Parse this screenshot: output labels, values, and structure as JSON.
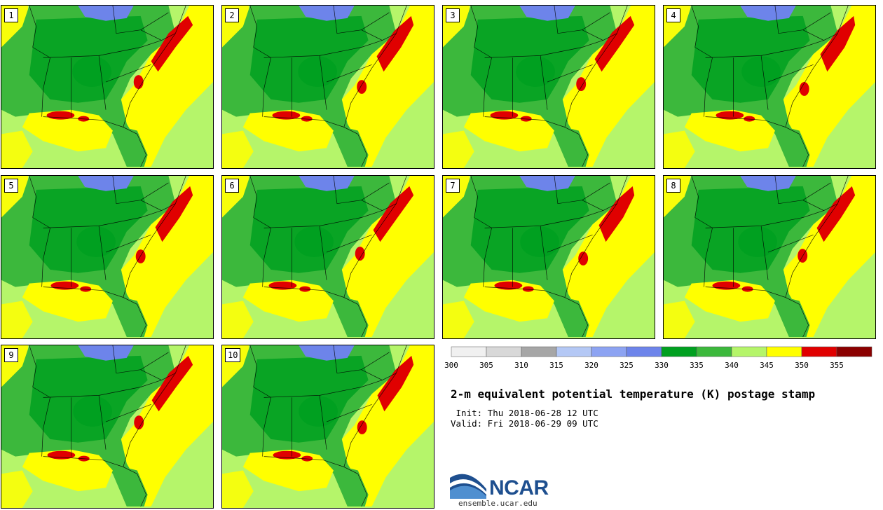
{
  "stamps": [
    {
      "label": "1",
      "red_ne": true
    },
    {
      "label": "2",
      "red_ne": true
    },
    {
      "label": "3",
      "red_ne": true
    },
    {
      "label": "4",
      "red_ne": true
    },
    {
      "label": "5",
      "red_ne": true
    },
    {
      "label": "6",
      "red_ne": true
    },
    {
      "label": "7",
      "red_ne": true
    },
    {
      "label": "8",
      "red_ne": true
    },
    {
      "label": "9",
      "red_ne": true
    },
    {
      "label": "10",
      "red_ne": true
    }
  ],
  "colorbar": {
    "bins": [
      {
        "from": 300,
        "to": 305,
        "color": "#f0f0f0"
      },
      {
        "from": 305,
        "to": 310,
        "color": "#d8d8d8"
      },
      {
        "from": 310,
        "to": 315,
        "color": "#a6a6a6"
      },
      {
        "from": 315,
        "to": 320,
        "color": "#b4c8f5"
      },
      {
        "from": 320,
        "to": 325,
        "color": "#8ca3f2"
      },
      {
        "from": 325,
        "to": 330,
        "color": "#6d84ea"
      },
      {
        "from": 330,
        "to": 335,
        "color": "#00a020"
      },
      {
        "from": 335,
        "to": 340,
        "color": "#3cb83c"
      },
      {
        "from": 340,
        "to": 345,
        "color": "#b5f56a"
      },
      {
        "from": 345,
        "to": 350,
        "color": "#ffff00"
      },
      {
        "from": 350,
        "to": 355,
        "color": "#e00000"
      },
      {
        "from": 355,
        "to": 360,
        "color": "#8b0000"
      }
    ],
    "tick_labels": [
      "300",
      "305",
      "310",
      "315",
      "320",
      "325",
      "330",
      "335",
      "340",
      "345",
      "350",
      "355"
    ]
  },
  "title": "2-m equivalent potential temperature (K) postage stamp",
  "init_line": " Init: Thu 2018-06-28 12 UTC",
  "valid_line": "Valid: Fri 2018-06-29 09 UTC",
  "logo": {
    "name": "NCAR",
    "site": "ensemble.ucar.edu"
  },
  "colors": {
    "land_dark": "#00a020",
    "land_mid": "#3cb83c",
    "light_green": "#b5f56a",
    "yellow": "#ffff00",
    "red": "#e00000",
    "blue": "#6d84ea"
  }
}
